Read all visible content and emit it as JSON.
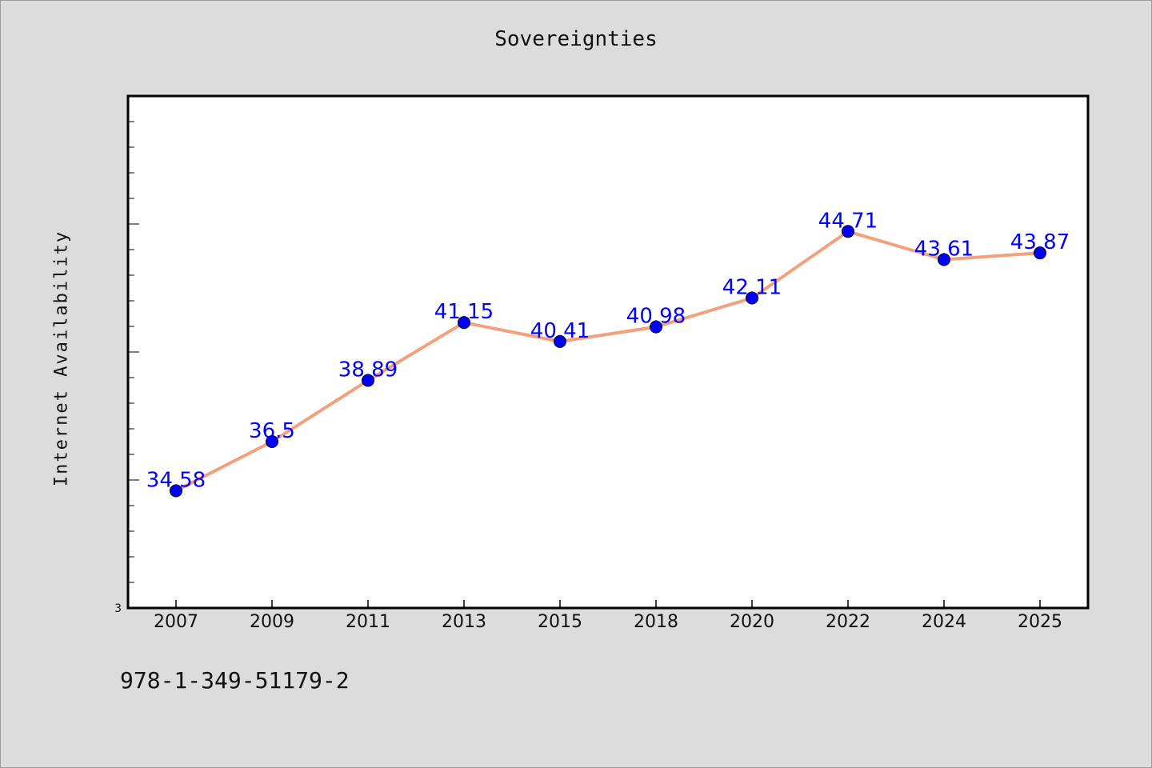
{
  "chart_data": {
    "type": "line",
    "title": "Sovereignties",
    "xlabel": "",
    "ylabel": "Internet Availability",
    "categories": [
      "2007",
      "2009",
      "2011",
      "2013",
      "2015",
      "2018",
      "2020",
      "2022",
      "2024",
      "2025"
    ],
    "series": [
      {
        "values": [
          34.58,
          36.5,
          38.89,
          41.15,
          40.41,
          40.98,
          42.11,
          44.71,
          43.61,
          43.87
        ],
        "labels": [
          "34.58",
          "36.5",
          "38.89",
          "41.15",
          "40.41",
          "40.98",
          "42.11",
          "44.71",
          "43.61",
          "43.87"
        ],
        "line_color": "#f4a07c",
        "marker_color": "#0000ff"
      }
    ],
    "ylim": [
      30,
      50
    ],
    "y_tick_labels": [
      "3"
    ],
    "grid": false,
    "colors": {
      "background": "#dcdcdc",
      "plot_background": "#ffffff",
      "label_color": "#0000ff"
    }
  },
  "footnote": "978-1-349-51179-2"
}
